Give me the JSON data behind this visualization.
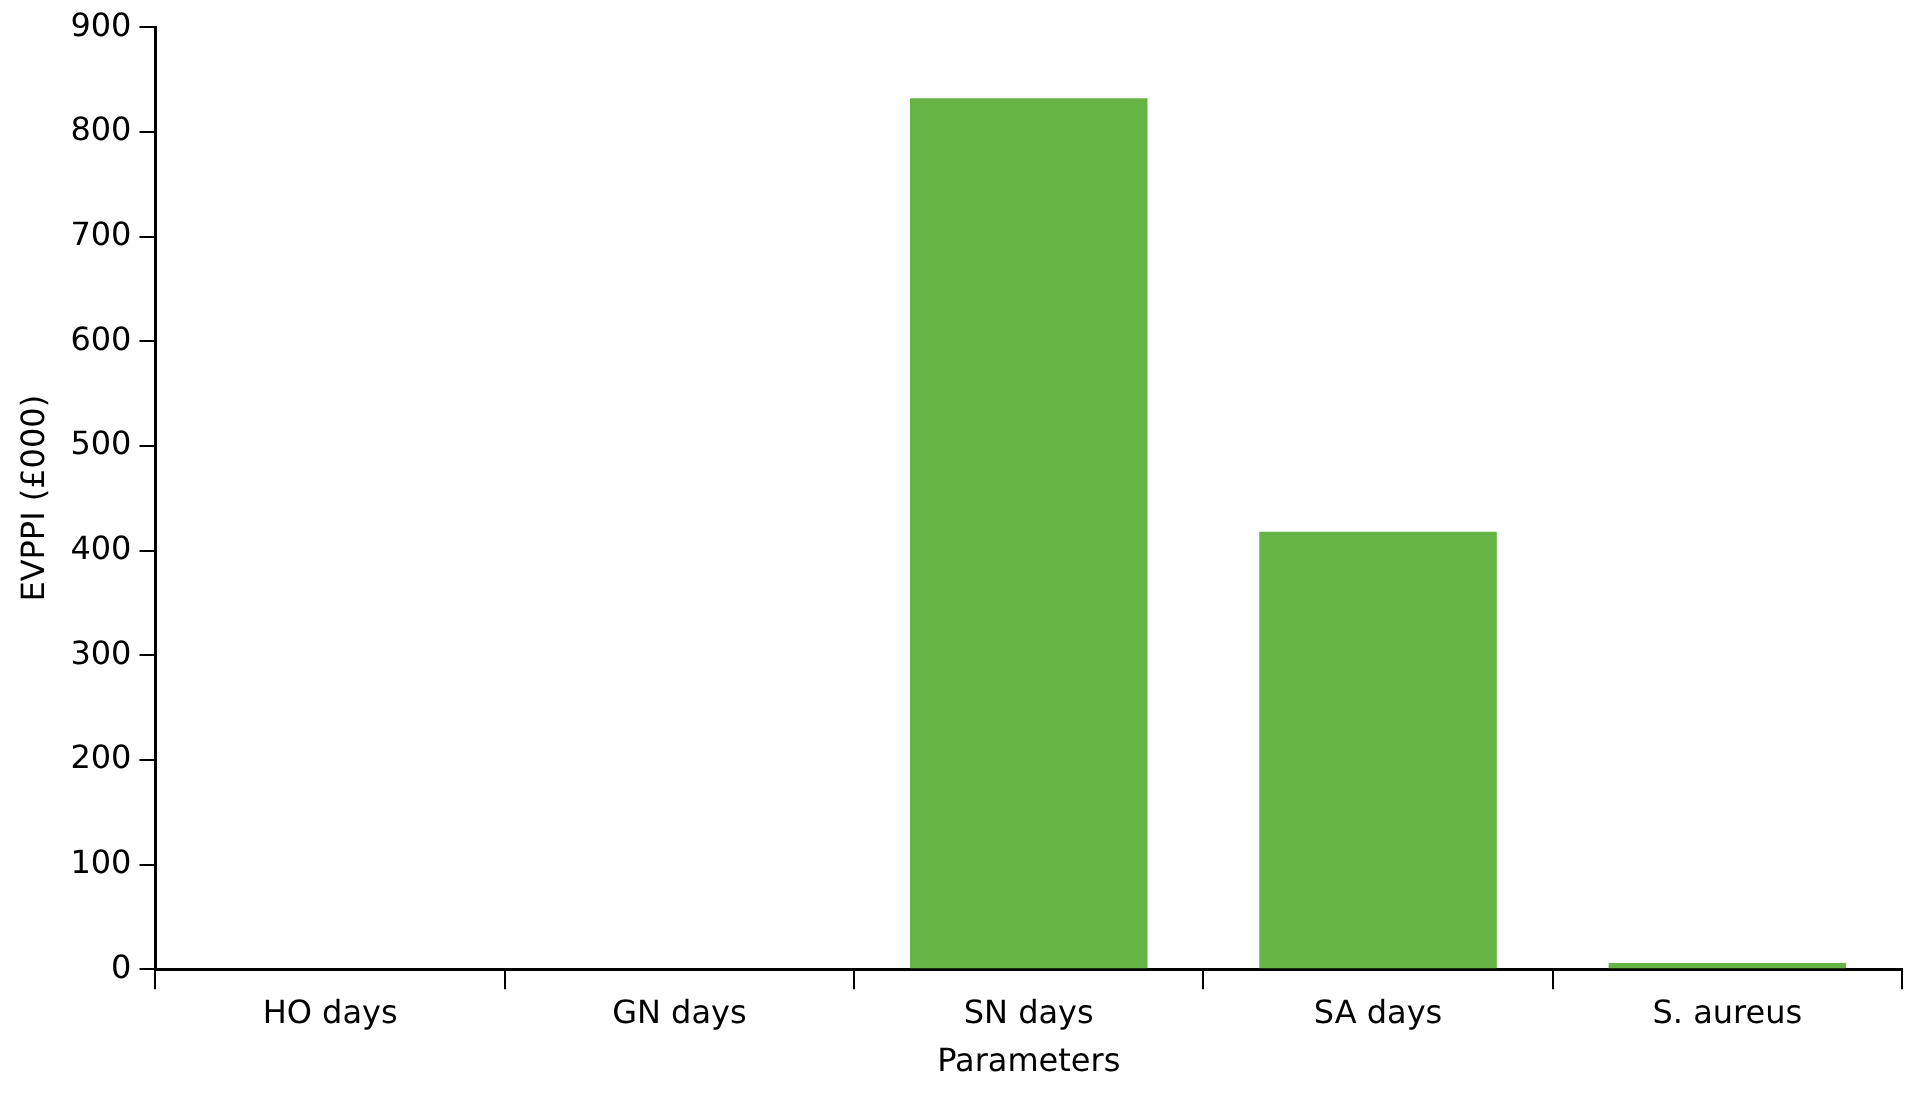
{
  "chart_data": {
    "type": "bar",
    "xlabel": "Parameters",
    "ylabel": "EVPPI (£000)",
    "categories": [
      "HO days",
      "GN days",
      "SN days",
      "SA days",
      "S. aureus"
    ],
    "values": [
      0,
      0,
      832,
      418,
      6
    ],
    "color": "#66b446",
    "ylim": [
      0,
      900
    ],
    "yticks": [
      0,
      100,
      200,
      300,
      400,
      500,
      600,
      700,
      800,
      900
    ],
    "grid": false,
    "legend": false
  }
}
